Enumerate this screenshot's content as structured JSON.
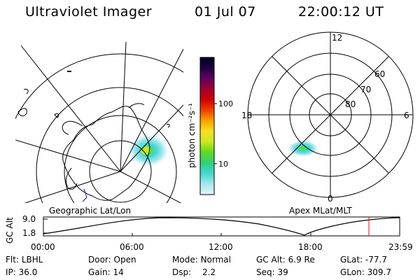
{
  "header": {
    "title": "Ultraviolet Imager",
    "date": "01 Jul 07",
    "time": "22:00:12 UT"
  },
  "geo_panel": {
    "label": "Geographic Lat/Lon"
  },
  "mag_panel": {
    "label": "Apex MLat/MLT",
    "mlt_labels": {
      "top": "12",
      "left": "18",
      "right": "6",
      "bottom": "0"
    },
    "lat_labels": [
      "60",
      "70",
      "80"
    ]
  },
  "colorbar": {
    "unit_label": "photon cm⁻²s⁻¹",
    "ticks": [
      "100",
      "10"
    ],
    "colors": [
      "#dff3f7",
      "#a8e8f0",
      "#40d8d0",
      "#30d080",
      "#60d820",
      "#c8e820",
      "#f8e020",
      "#f8a000",
      "#f04000",
      "#d00000",
      "#a00030",
      "#600060",
      "#200040",
      "#000020"
    ]
  },
  "altitude_plot": {
    "ylabel": "GC Alt",
    "yticks": [
      "9.0",
      "1.8"
    ],
    "xticks": [
      "00:00",
      "06:00",
      "12:00",
      "18:00",
      "23:59"
    ],
    "current_marker_color": "#ff0000"
  },
  "info": {
    "row1": [
      {
        "key": "Flt:",
        "value": "LBHL"
      },
      {
        "key": "Door:",
        "value": "Open"
      },
      {
        "key": "Mode:",
        "value": "Normal"
      },
      {
        "key": "GC Alt:",
        "value": "6.9 Re"
      },
      {
        "key": "GLat:",
        "value": "-77.7"
      }
    ],
    "row2": [
      {
        "key": "IP:",
        "value": "36.0"
      },
      {
        "key": "Gain:",
        "value": "14"
      },
      {
        "key": "Dsp:",
        "value": "2.2"
      },
      {
        "key": "Seq:",
        "value": "39"
      },
      {
        "key": "GLon:",
        "value": "309.7"
      }
    ]
  }
}
